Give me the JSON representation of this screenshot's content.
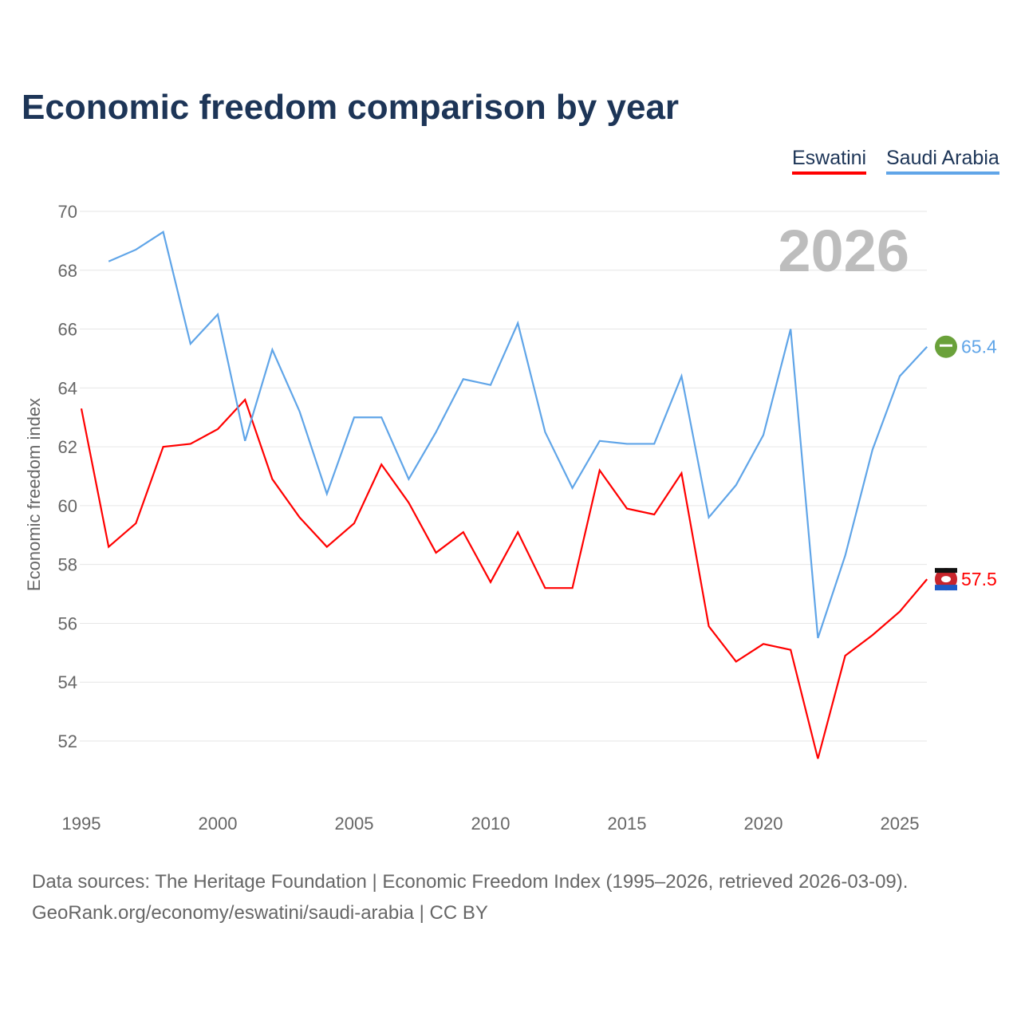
{
  "chart_data": {
    "type": "line",
    "title": "Economic freedom comparison by year",
    "ylabel": "Economic freedom index",
    "xlabel": "",
    "ylim": [
      50,
      70.5
    ],
    "xlim": [
      1995,
      2026
    ],
    "yticks": [
      52,
      54,
      56,
      58,
      60,
      62,
      64,
      66,
      68,
      70
    ],
    "xticks": [
      1995,
      2000,
      2005,
      2010,
      2015,
      2020,
      2025
    ],
    "grid": true,
    "legend_position": "top-right",
    "year_annotation": "2026",
    "series": [
      {
        "name": "Eswatini",
        "color": "#ff0000",
        "end_label": "57.5",
        "start": 1995,
        "values": [
          63.3,
          58.6,
          59.4,
          62.0,
          62.1,
          62.6,
          63.6,
          60.9,
          59.6,
          58.6,
          59.4,
          61.4,
          60.1,
          58.4,
          59.1,
          57.4,
          59.1,
          57.2,
          57.2,
          61.2,
          59.9,
          59.7,
          61.1,
          55.9,
          54.7,
          55.3,
          55.1,
          51.4,
          54.9,
          55.6,
          56.4,
          57.5
        ]
      },
      {
        "name": "Saudi Arabia",
        "color": "#60a5e8",
        "end_label": "65.4",
        "start": 1996,
        "values": [
          68.3,
          68.7,
          69.3,
          65.5,
          66.5,
          62.2,
          65.3,
          63.2,
          60.4,
          63.0,
          63.0,
          60.9,
          62.5,
          64.3,
          64.1,
          66.2,
          62.5,
          60.6,
          62.2,
          62.1,
          62.1,
          64.4,
          59.6,
          60.7,
          62.4,
          66.0,
          55.5,
          58.3,
          61.9,
          64.4,
          65.4
        ]
      }
    ]
  },
  "footer": {
    "line1": "Data sources: The Heritage Foundation | Economic Freedom Index (1995–2026, retrieved 2026-03-09).",
    "line2": "GeoRank.org/economy/eswatini/saudi-arabia | CC BY"
  }
}
